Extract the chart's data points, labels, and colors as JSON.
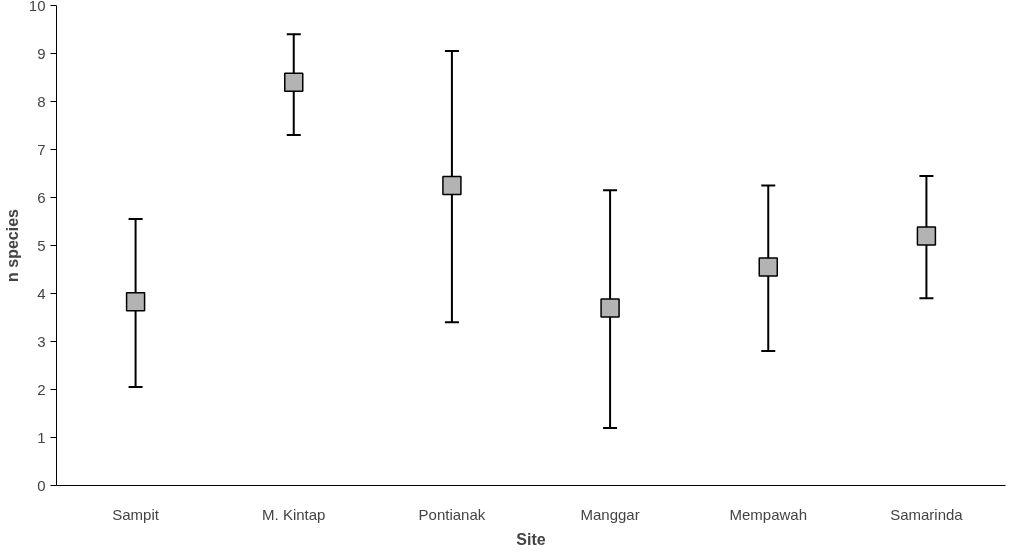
{
  "chart_data": {
    "type": "scatter",
    "xlabel": "Site",
    "ylabel": "n species",
    "categories": [
      "Sampit",
      "M. Kintap",
      "Pontianak",
      "Manggar",
      "Mempawah",
      "Samarinda"
    ],
    "series": [
      {
        "color": "#b3b3b3",
        "values": [
          3.83,
          8.4,
          6.25,
          3.7,
          4.55,
          5.2
        ],
        "errors": [
          [
            2.05,
            5.55
          ],
          [
            7.3,
            9.4
          ],
          [
            3.4,
            9.05
          ],
          [
            1.2,
            6.15
          ],
          [
            2.8,
            6.25
          ],
          [
            3.9,
            6.45
          ]
        ]
      }
    ],
    "ylim": [
      0,
      10
    ],
    "yticks": [
      0,
      1,
      2,
      3,
      4,
      5,
      6,
      7,
      8,
      9,
      10
    ],
    "marker": "square",
    "grid": false
  }
}
